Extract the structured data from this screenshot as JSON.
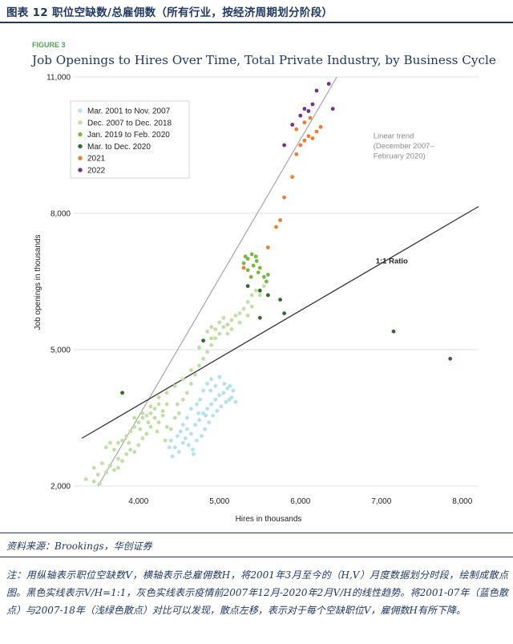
{
  "header": {
    "title": "图表 12  职位空缺数/总雇佣数（所有行业，按经济周期划分阶段）"
  },
  "footer": {
    "source": "资料来源：Brookings，华创证券",
    "note": "注：用纵轴表示职位空缺数V，横轴表示总雇佣数H，将2001年3月至今的（H,V）月度数据划分时段，绘制成散点图。黑色实线表示V/H=1:1，灰色实线表示疫情前2007年12月-2020年2月V/H的线性趋势。将2001-07年（蓝色散点）与2007-18年（浅绿色散点）对比可以发现，散点左移，表示对于每个空缺职位V，雇佣数H有所下降。"
  },
  "chart_data": {
    "type": "scatter",
    "figure_label": "FIGURE 3",
    "title": "Job Openings to Hires Over Time, Total Private Industry, by Business Cycle",
    "xlabel": "Hires in thousands",
    "ylabel": "Job openings in thousands",
    "xlim": [
      3200,
      8200
    ],
    "ylim": [
      2000,
      11000
    ],
    "xticks": [
      4000,
      5000,
      6000,
      7000,
      8000
    ],
    "xtick_labels": [
      "4,000",
      "5,000",
      "6,000",
      "7,000",
      "8,000"
    ],
    "yticks": [
      2000,
      5000,
      8000,
      11000
    ],
    "ytick_labels": [
      "2,000",
      "5,000",
      "8,000",
      "11,000"
    ],
    "grid": "horizontal",
    "legend_position": "top-left",
    "series": [
      {
        "name": "Mar. 2001 to Nov. 2007",
        "color": "#b3e0f2",
        "points": [
          [
            4400,
            3000
          ],
          [
            4450,
            2850
          ],
          [
            4480,
            3100
          ],
          [
            4500,
            2750
          ],
          [
            4520,
            3200
          ],
          [
            4550,
            2950
          ],
          [
            4580,
            3050
          ],
          [
            4600,
            3250
          ],
          [
            4620,
            2900
          ],
          [
            4650,
            3150
          ],
          [
            4670,
            2800
          ],
          [
            4700,
            3350
          ],
          [
            4720,
            3000
          ],
          [
            4750,
            3450
          ],
          [
            4780,
            3100
          ],
          [
            4800,
            3600
          ],
          [
            4820,
            3250
          ],
          [
            4850,
            3700
          ],
          [
            4870,
            3400
          ],
          [
            4900,
            3800
          ],
          [
            4920,
            3550
          ],
          [
            4950,
            3900
          ],
          [
            4970,
            3650
          ],
          [
            5000,
            4000
          ],
          [
            5020,
            3750
          ],
          [
            5050,
            4050
          ],
          [
            5080,
            3850
          ],
          [
            5100,
            4150
          ],
          [
            5120,
            3900
          ],
          [
            5150,
            3950
          ],
          [
            5170,
            4100
          ],
          [
            5200,
            3850
          ],
          [
            4760,
            3900
          ],
          [
            4800,
            4100
          ],
          [
            4850,
            4250
          ],
          [
            4900,
            4350
          ],
          [
            4950,
            4200
          ],
          [
            5000,
            4400
          ],
          [
            4600,
            3500
          ],
          [
            4550,
            3350
          ],
          [
            4650,
            3700
          ],
          [
            4720,
            3800
          ],
          [
            4680,
            2700
          ],
          [
            4420,
            2650
          ],
          [
            4380,
            2850
          ],
          [
            5060,
            4250
          ],
          [
            5130,
            4200
          ],
          [
            4830,
            3550
          ],
          [
            4740,
            3600
          ],
          [
            4890,
            4100
          ]
        ]
      },
      {
        "name": "Dec. 2007 to Dec. 2018",
        "color": "#bfe0a2",
        "points": [
          [
            3350,
            2150
          ],
          [
            3450,
            2100
          ],
          [
            3500,
            2250
          ],
          [
            3520,
            2050
          ],
          [
            3600,
            2300
          ],
          [
            3650,
            2450
          ],
          [
            3700,
            2350
          ],
          [
            3750,
            2600
          ],
          [
            3800,
            2550
          ],
          [
            3850,
            2700
          ],
          [
            3900,
            2800
          ],
          [
            3950,
            2750
          ],
          [
            4000,
            2900
          ],
          [
            4050,
            3050
          ],
          [
            4100,
            3150
          ],
          [
            4150,
            3300
          ],
          [
            4200,
            3500
          ],
          [
            4250,
            3400
          ],
          [
            4300,
            3650
          ],
          [
            4350,
            3800
          ],
          [
            3700,
            2800
          ],
          [
            3750,
            2950
          ],
          [
            3800,
            3000
          ],
          [
            3850,
            3100
          ],
          [
            3900,
            3200
          ],
          [
            3950,
            3300
          ],
          [
            4000,
            3400
          ],
          [
            4050,
            3500
          ],
          [
            4100,
            3550
          ],
          [
            4150,
            3600
          ],
          [
            4200,
            3700
          ],
          [
            4250,
            3800
          ],
          [
            4300,
            3550
          ],
          [
            4350,
            3300
          ],
          [
            4400,
            3250
          ],
          [
            4450,
            3500
          ],
          [
            4500,
            3600
          ],
          [
            4550,
            3900
          ],
          [
            4600,
            4050
          ],
          [
            4650,
            4250
          ],
          [
            4700,
            4450
          ],
          [
            4750,
            4650
          ],
          [
            4800,
            4800
          ],
          [
            4850,
            4950
          ],
          [
            4900,
            5100
          ],
          [
            4950,
            5250
          ],
          [
            5000,
            5350
          ],
          [
            5050,
            5500
          ],
          [
            5100,
            5550
          ],
          [
            5150,
            5650
          ],
          [
            5200,
            5750
          ],
          [
            5250,
            5800
          ],
          [
            5300,
            5900
          ],
          [
            5350,
            6050
          ],
          [
            5400,
            6200
          ],
          [
            5450,
            6300
          ],
          [
            5500,
            6200
          ],
          [
            5550,
            6400
          ],
          [
            4850,
            5400
          ],
          [
            4900,
            5500
          ],
          [
            4950,
            5450
          ],
          [
            5000,
            5600
          ],
          [
            5050,
            5700
          ],
          [
            5100,
            5350
          ],
          [
            4800,
            5200
          ],
          [
            4750,
            5050
          ],
          [
            3650,
            2950
          ],
          [
            3600,
            2850
          ],
          [
            3550,
            2500
          ],
          [
            3950,
            3500
          ],
          [
            4050,
            3600
          ],
          [
            4150,
            3750
          ],
          [
            4250,
            3950
          ],
          [
            4350,
            4050
          ],
          [
            4450,
            4200
          ],
          [
            4550,
            4350
          ],
          [
            4650,
            4550
          ],
          [
            4900,
            5250
          ],
          [
            5150,
            5450
          ],
          [
            5250,
            5600
          ],
          [
            5350,
            5750
          ],
          [
            5400,
            5950
          ],
          [
            3450,
            2400
          ],
          [
            3750,
            2400
          ],
          [
            3880,
            2950
          ],
          [
            4020,
            3250
          ],
          [
            4120,
            3400
          ],
          [
            4230,
            3200
          ],
          [
            4330,
            3000
          ],
          [
            4480,
            3800
          ]
        ]
      },
      {
        "name": "Jan. 2019 to Feb. 2020",
        "color": "#78b843",
        "points": [
          [
            5300,
            6900
          ],
          [
            5350,
            7000
          ],
          [
            5400,
            7100
          ],
          [
            5450,
            7050
          ],
          [
            5500,
            6800
          ],
          [
            5350,
            6750
          ],
          [
            5420,
            6850
          ],
          [
            5480,
            6700
          ],
          [
            5550,
            6600
          ],
          [
            5600,
            6650
          ],
          [
            5320,
            7050
          ],
          [
            5460,
            6950
          ],
          [
            5580,
            6500
          ],
          [
            5390,
            6600
          ]
        ]
      },
      {
        "name": "Mar. to Dec. 2020",
        "color": "#2f6e2f",
        "points": [
          [
            3800,
            4050
          ],
          [
            4800,
            5200
          ],
          [
            5350,
            6400
          ],
          [
            5500,
            6300
          ],
          [
            5600,
            6200
          ],
          [
            5750,
            6100
          ],
          [
            5500,
            5700
          ],
          [
            5800,
            5800
          ],
          [
            7150,
            5400
          ],
          [
            7850,
            4800
          ]
        ]
      },
      {
        "name": "2021",
        "color": "#ee7d2b",
        "points": [
          [
            5300,
            6800
          ],
          [
            5600,
            7250
          ],
          [
            5700,
            7700
          ],
          [
            5750,
            7850
          ],
          [
            5800,
            8350
          ],
          [
            5900,
            8800
          ],
          [
            5950,
            9300
          ],
          [
            6000,
            9500
          ],
          [
            6050,
            9600
          ],
          [
            6100,
            9700
          ],
          [
            6150,
            9650
          ],
          [
            6200,
            9800
          ],
          [
            6250,
            9900
          ],
          [
            5950,
            9850
          ],
          [
            6050,
            10000
          ],
          [
            6120,
            10100
          ]
        ]
      },
      {
        "name": "2022",
        "color": "#7a2d91",
        "points": [
          [
            5900,
            9950
          ],
          [
            6000,
            10150
          ],
          [
            6050,
            10300
          ],
          [
            6100,
            10250
          ],
          [
            6150,
            10400
          ],
          [
            6200,
            10700
          ],
          [
            6350,
            10850
          ],
          [
            6400,
            10300
          ],
          [
            5800,
            9500
          ]
        ]
      }
    ],
    "lines": [
      {
        "name": "linear-trend",
        "label": "Linear trend (December 2007–February 2020)",
        "label_lines": [
          "Linear trend",
          "(December 2007–",
          "February 2020)"
        ],
        "color": "#a6a6a6",
        "from": [
          3500,
          2000
        ],
        "to": [
          6450,
          11000
        ]
      },
      {
        "name": "ratio-line",
        "label": "1:1 Ratio",
        "color": "#333333",
        "from": [
          3300,
          3050
        ],
        "to": [
          8200,
          8150
        ]
      }
    ],
    "annotations": {
      "trend_label_anchor": [
        6900,
        9650
      ],
      "ratio_label_anchor": [
        6930,
        6900
      ]
    }
  }
}
